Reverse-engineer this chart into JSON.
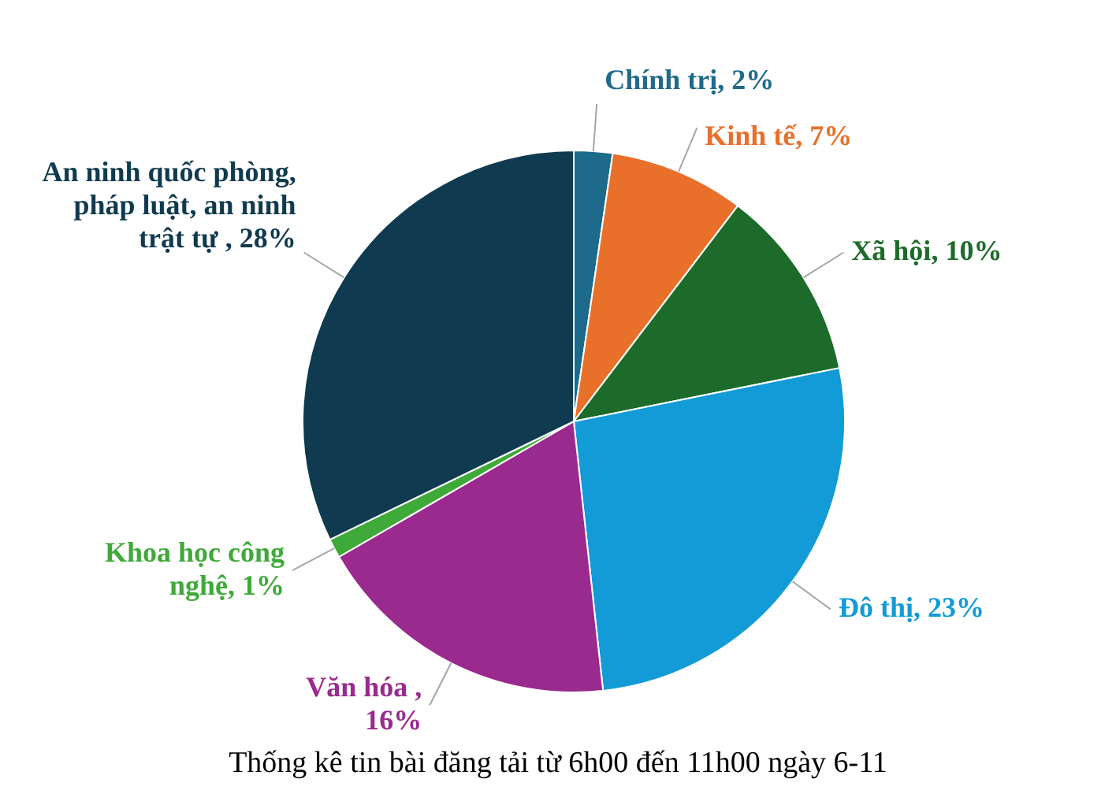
{
  "chart_data": {
    "type": "pie",
    "title": "Thống kê tin bài đăng tải từ 6h00 đến 11h00 ngày 6-11",
    "categories": [
      "Chính trị, 2%",
      "Kinh tế, 7%",
      "Xã hội, 10%",
      "Đô thị, 23%",
      "Văn hóa , 16%",
      "Khoa học công nghệ, 1%",
      "An ninh quốc phòng, pháp luật, an ninh trật tự , 28%"
    ],
    "values": [
      2,
      7,
      10,
      23,
      16,
      1,
      28
    ],
    "colors": [
      "#1d6a8a",
      "#e8702a",
      "#1c6b2a",
      "#129bd6",
      "#9a2a8e",
      "#3fa93a",
      "#0f3a4f"
    ],
    "legend": false
  }
}
